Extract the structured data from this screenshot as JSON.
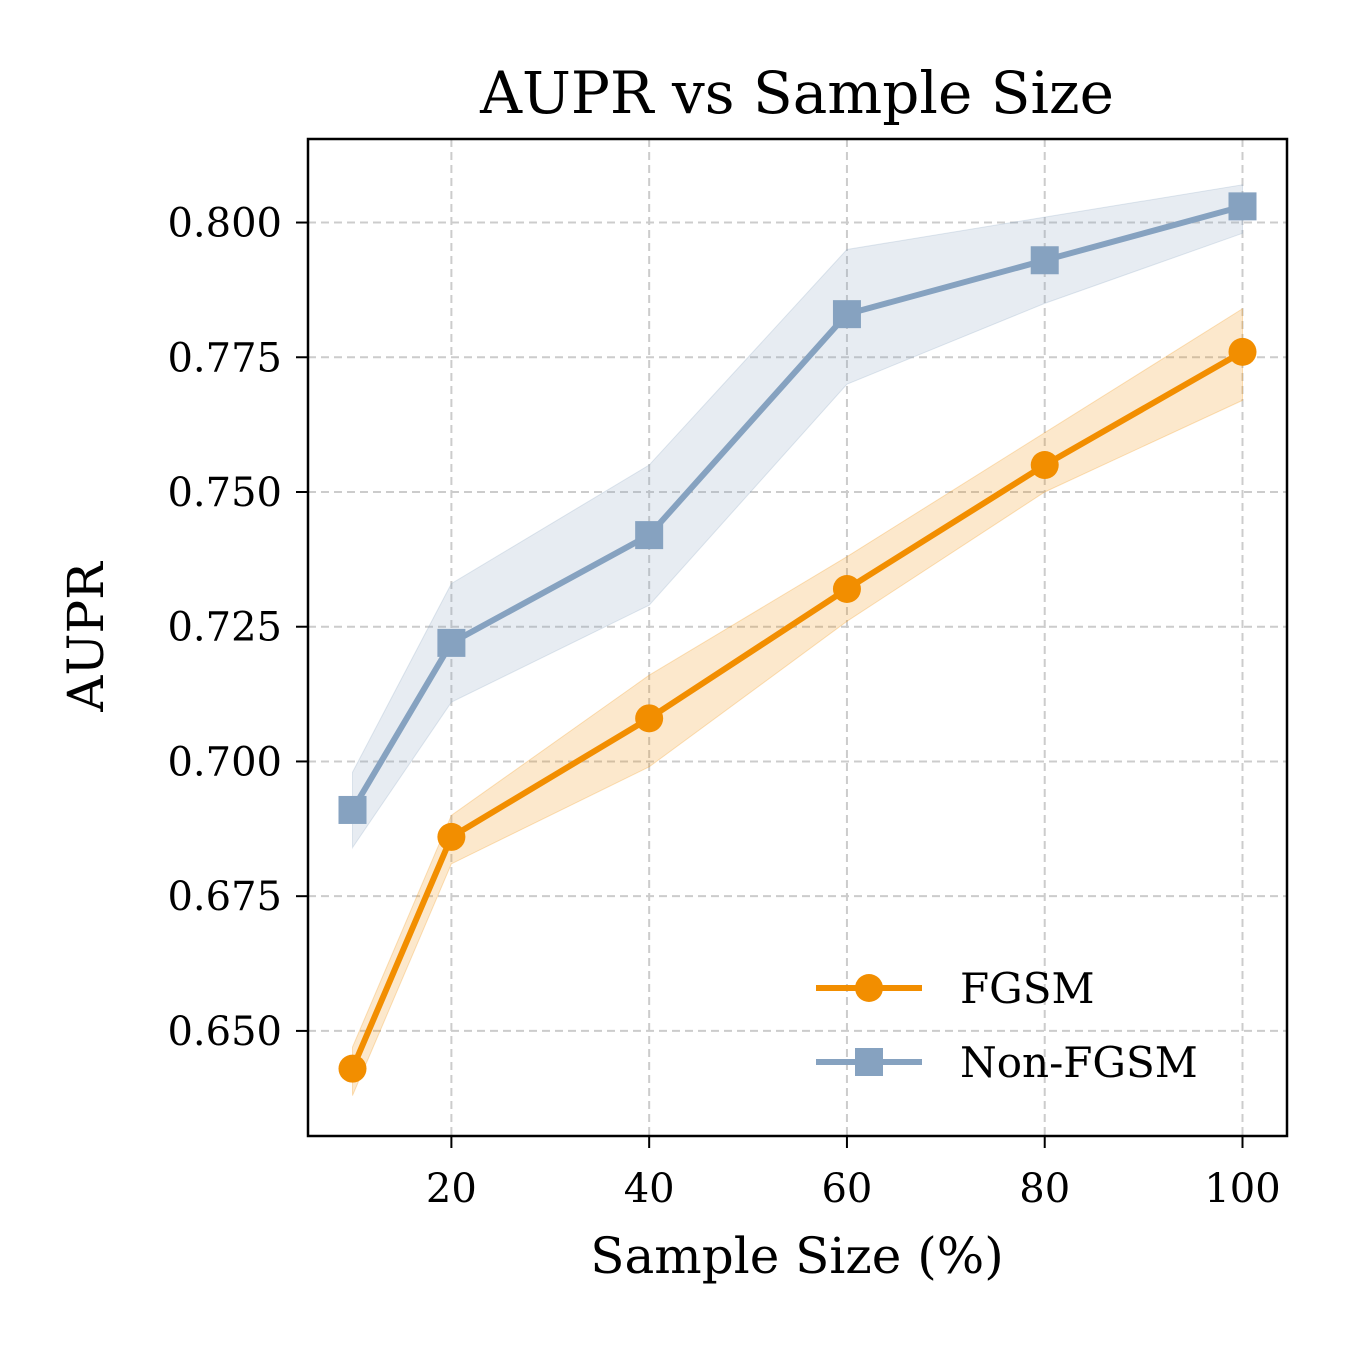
{
  "chart_data": {
    "type": "line",
    "title": "AUPR vs Sample Size",
    "xlabel": "Sample Size (%)",
    "ylabel": "AUPR",
    "x": [
      10,
      20,
      40,
      60,
      80,
      100
    ],
    "xlim": [
      5.5,
      104.5
    ],
    "ylim": [
      0.6305,
      0.8155
    ],
    "xticks": [
      20,
      40,
      60,
      80,
      100
    ],
    "xtick_labels": [
      "20",
      "40",
      "60",
      "80",
      "100"
    ],
    "yticks": [
      0.65,
      0.675,
      0.7,
      0.725,
      0.75,
      0.775,
      0.8
    ],
    "ytick_labels": [
      "0.650",
      "0.675",
      "0.700",
      "0.725",
      "0.750",
      "0.775",
      "0.800"
    ],
    "grid": true,
    "legend_position": "lower-right",
    "series": [
      {
        "name": "FGSM",
        "color": "#f28e00",
        "marker": "circle",
        "values": [
          0.643,
          0.686,
          0.708,
          0.732,
          0.755,
          0.776
        ],
        "band_low": [
          0.638,
          0.681,
          0.699,
          0.726,
          0.75,
          0.767
        ],
        "band_high": [
          0.647,
          0.69,
          0.716,
          0.738,
          0.761,
          0.784
        ]
      },
      {
        "name": "Non-FGSM",
        "color": "#86a2c0",
        "marker": "square",
        "values": [
          0.691,
          0.722,
          0.742,
          0.783,
          0.793,
          0.803
        ],
        "band_low": [
          0.684,
          0.711,
          0.729,
          0.77,
          0.785,
          0.798
        ],
        "band_high": [
          0.698,
          0.733,
          0.755,
          0.795,
          0.801,
          0.807
        ]
      }
    ]
  }
}
